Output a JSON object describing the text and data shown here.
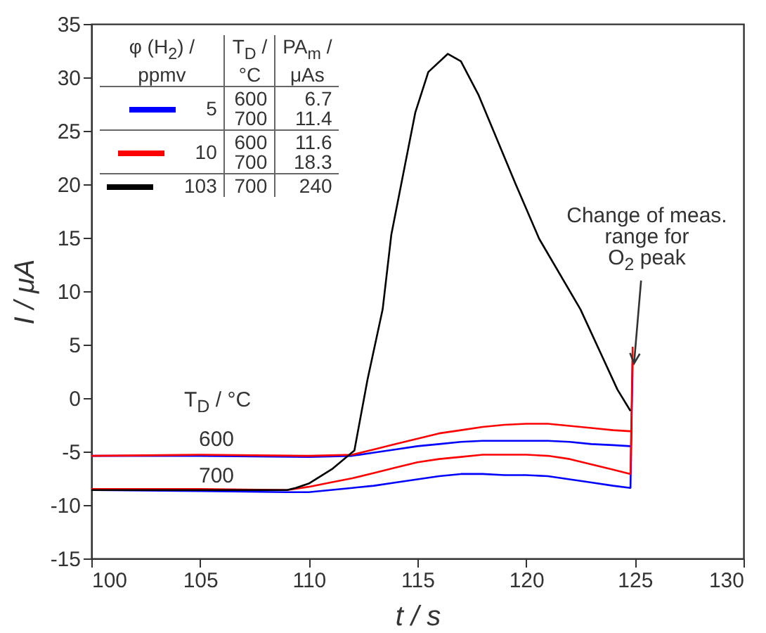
{
  "chart_data": {
    "type": "line",
    "xlabel": "t / s",
    "ylabel": "I / μA",
    "xlim": [
      100,
      130
    ],
    "xticks": [
      100,
      105,
      110,
      115,
      120,
      125,
      130
    ],
    "ylim": [
      -15,
      35
    ],
    "yticks": [
      -15,
      -10,
      -5,
      0,
      5,
      10,
      15,
      20,
      25,
      30,
      35
    ],
    "legend": "top left",
    "series": [
      {
        "name": "5",
        "color": "#0000ff",
        "x": [
          100,
          105,
          110,
          112,
          113,
          114,
          115,
          116,
          117,
          118,
          119,
          120,
          121,
          122,
          123,
          124,
          124.8
        ],
        "values": [
          -5.4,
          -5.4,
          -5.5,
          -5.4,
          -5.1,
          -4.8,
          -4.5,
          -4.3,
          -4.1,
          -4.0,
          -4.0,
          -4.0,
          -4.0,
          -4.1,
          -4.3,
          -4.4,
          -4.5
        ]
      },
      {
        "color": "#0000ff",
        "x": [
          100,
          105,
          109,
          110,
          111,
          112,
          113,
          114,
          115,
          116,
          117,
          118,
          119,
          120,
          121,
          122,
          123,
          124,
          124.8,
          124.9
        ],
        "values": [
          -8.6,
          -8.7,
          -8.8,
          -8.8,
          -8.6,
          -8.4,
          -8.2,
          -7.9,
          -7.6,
          -7.3,
          -7.1,
          -7.1,
          -7.2,
          -7.2,
          -7.3,
          -7.6,
          -7.9,
          -8.2,
          -8.4,
          3.5
        ]
      },
      {
        "name": "10",
        "color": "#ff0000",
        "x": [
          100,
          105,
          110,
          112,
          113,
          114,
          115,
          116,
          117,
          118,
          119,
          120,
          121,
          122,
          123,
          124,
          124.8
        ],
        "values": [
          -5.4,
          -5.3,
          -5.4,
          -5.3,
          -4.8,
          -4.3,
          -3.8,
          -3.3,
          -3.0,
          -2.7,
          -2.5,
          -2.4,
          -2.4,
          -2.6,
          -2.8,
          -3.0,
          -3.1
        ]
      },
      {
        "color": "#ff0000",
        "x": [
          100,
          105,
          109,
          110,
          111,
          112,
          113,
          114,
          115,
          116,
          117,
          118,
          119,
          120,
          121,
          122,
          123,
          124,
          124.8,
          124.9
        ],
        "values": [
          -8.5,
          -8.5,
          -8.6,
          -8.3,
          -7.9,
          -7.5,
          -7.0,
          -6.5,
          -6.0,
          -5.7,
          -5.5,
          -5.3,
          -5.3,
          -5.3,
          -5.4,
          -5.7,
          -6.2,
          -6.7,
          -7.1,
          4.8
        ]
      },
      {
        "name": "103",
        "color": "#000000",
        "x": [
          100,
          105,
          109,
          109.4,
          110,
          111.1,
          112.1,
          112.7,
          113.4,
          113.8,
          114.9,
          115.5,
          116.4,
          117,
          117.8,
          119.5,
          120.6,
          122.5,
          124.2,
          124.8
        ],
        "values": [
          -8.6,
          -8.6,
          -8.6,
          -8.4,
          -8.0,
          -6.6,
          -4.9,
          1.7,
          8.3,
          15.3,
          26.7,
          30.5,
          32.2,
          31.5,
          28.4,
          20.1,
          14.9,
          8.3,
          0.8,
          -1.2
        ]
      }
    ],
    "annotations": [
      "φ (H$_{2}$) /\nppmv",
      "T$_{D}$ /\n°C",
      "PA$_{m}$ /\nμAs",
      "600\n700",
      "6.7\n11.4",
      "600\n700",
      "11.6\n18.3",
      "700",
      "240",
      "T$_{D}$ / °C",
      "600",
      "700",
      {
        "text": "Change of meas.\nrange for\nO$_{2}$ peak",
        "x": 124.9,
        "y": 3.5
      }
    ]
  }
}
